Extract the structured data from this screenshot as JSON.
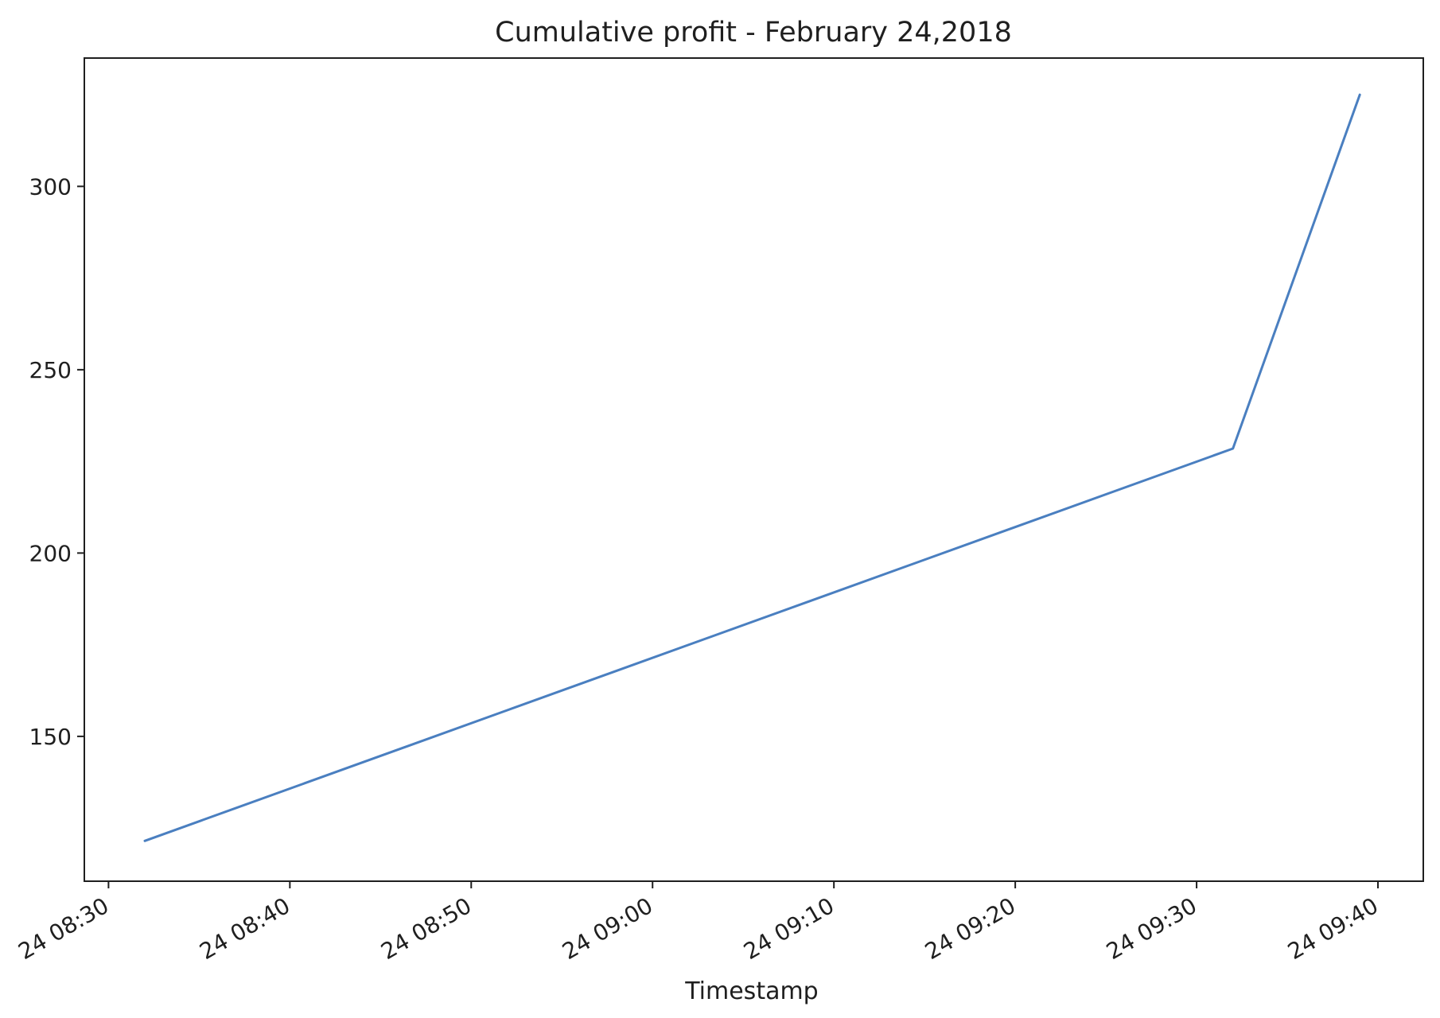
{
  "chart_data": {
    "type": "line",
    "title": "Cumulative profit - February 24,2018",
    "xlabel": "Timestamp",
    "ylabel": "",
    "x_type": "datetime",
    "xlim": [
      "2018-02-24 08:28:40",
      "2018-02-24 09:42:30"
    ],
    "ylim": [
      110.5,
      335
    ],
    "x_ticks": [
      "2018-02-24 08:30",
      "2018-02-24 08:40",
      "2018-02-24 08:50",
      "2018-02-24 09:00",
      "2018-02-24 09:10",
      "2018-02-24 09:20",
      "2018-02-24 09:30",
      "2018-02-24 09:40"
    ],
    "x_tick_labels": [
      "24 08:30",
      "24 08:40",
      "24 08:50",
      "24 09:00",
      "24 09:10",
      "24 09:20",
      "24 09:30",
      "24 09:40"
    ],
    "y_ticks": [
      150,
      200,
      250,
      300
    ],
    "y_tick_labels": [
      "150",
      "200",
      "250",
      "300"
    ],
    "grid": false,
    "series": [
      {
        "color": "#4a7fc0",
        "points": [
          {
            "x": "2018-02-24 08:32",
            "y": 121.5
          },
          {
            "x": "2018-02-24 09:32",
            "y": 228.5
          },
          {
            "x": "2018-02-24 09:39",
            "y": 325
          }
        ]
      }
    ]
  }
}
